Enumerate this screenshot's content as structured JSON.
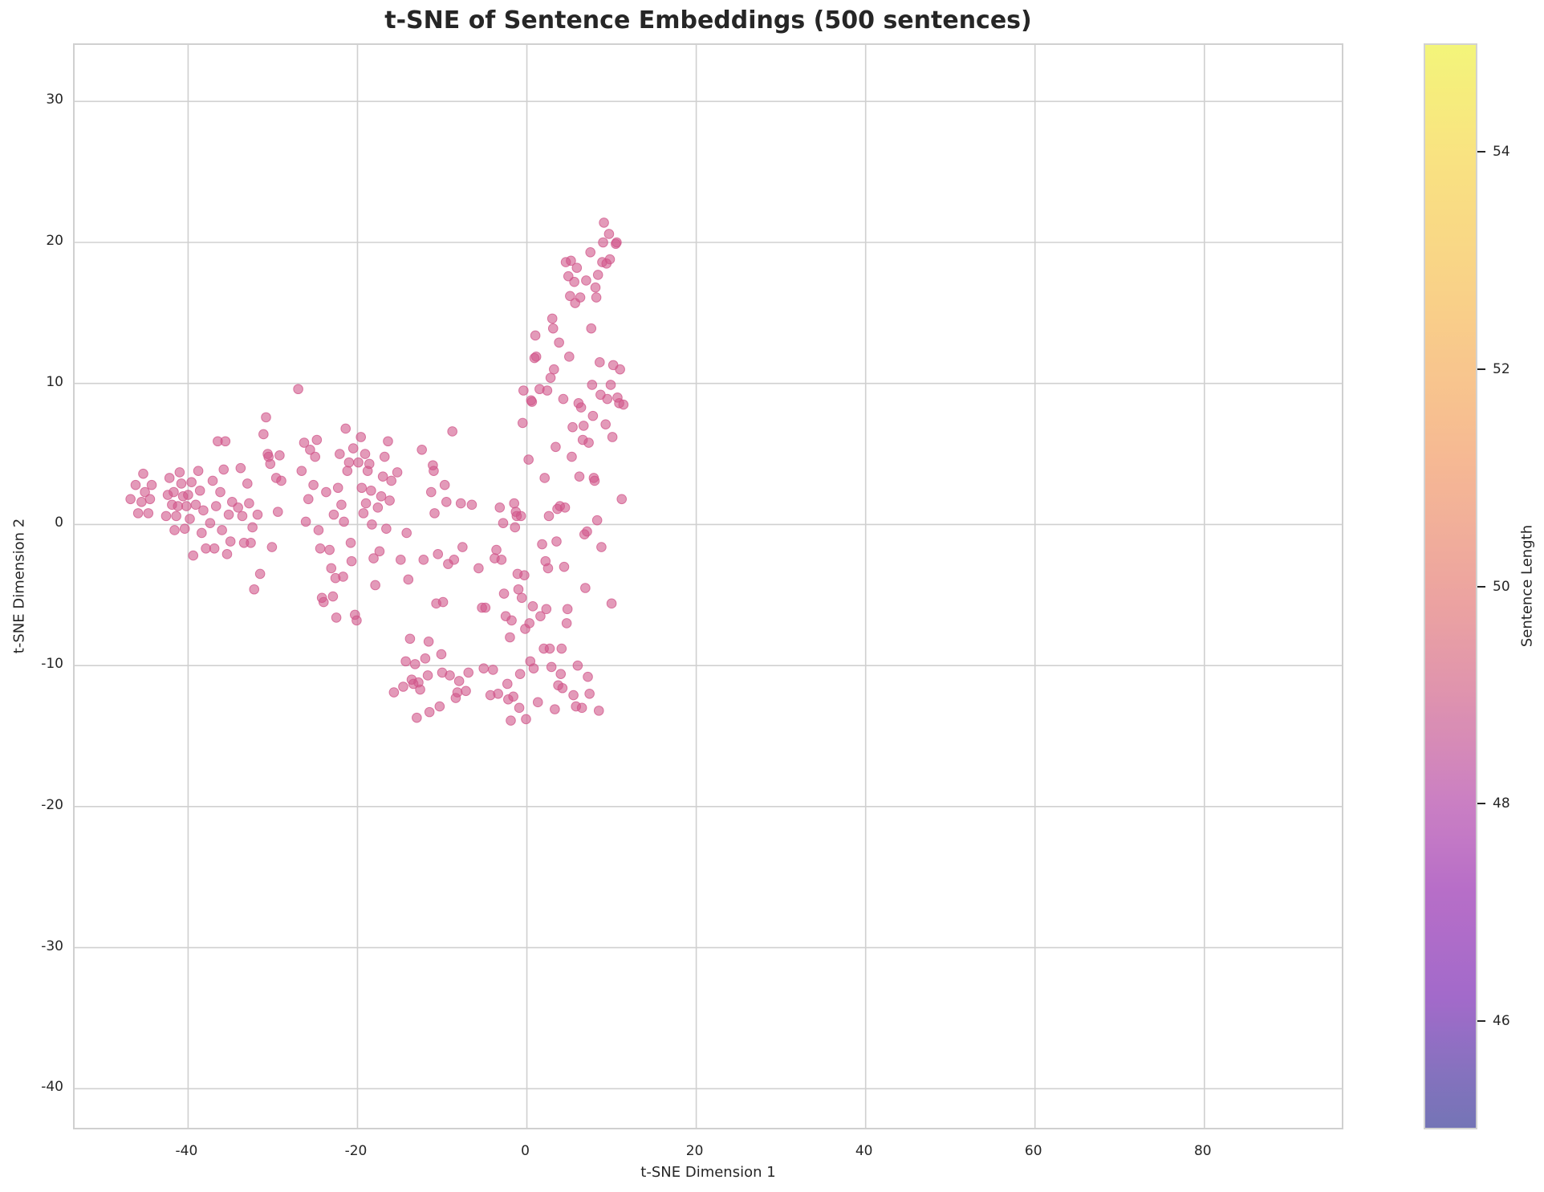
{
  "chart_data": {
    "type": "scatter",
    "title": "t-SNE of Sentence Embeddings (500 sentences)",
    "xlabel": "t-SNE Dimension 1",
    "ylabel": "t-SNE Dimension 2",
    "xlim": [
      -53.4,
      96.6
    ],
    "ylim": [
      -43,
      34
    ],
    "grid": true,
    "xticks": [
      -40,
      -20,
      0,
      20,
      40,
      60,
      80
    ],
    "yticks": [
      30,
      20,
      10,
      0,
      -10,
      -20,
      -30,
      -40
    ],
    "point_color": "#d0568a",
    "point_alpha": 0.6,
    "colorbar": {
      "label": "Sentence Length",
      "ticks": [
        54,
        52,
        50,
        48,
        46
      ],
      "range": [
        45.0,
        55.0
      ],
      "colormap": "plasma"
    },
    "n_points_stated": 500,
    "points": [
      [
        -46.8,
        1.8
      ],
      [
        -46.2,
        2.8
      ],
      [
        -45.9,
        0.8
      ],
      [
        -45.5,
        1.6
      ],
      [
        -45.3,
        3.6
      ],
      [
        -45.1,
        2.3
      ],
      [
        -44.7,
        0.8
      ],
      [
        -44.5,
        1.8
      ],
      [
        -44.3,
        2.8
      ],
      [
        -42.6,
        0.6
      ],
      [
        -42.4,
        2.1
      ],
      [
        -42.2,
        3.3
      ],
      [
        -41.9,
        1.4
      ],
      [
        -41.7,
        2.3
      ],
      [
        -41.6,
        -0.4
      ],
      [
        -41.4,
        0.6
      ],
      [
        -41.2,
        1.3
      ],
      [
        -41.0,
        3.7
      ],
      [
        -40.8,
        2.9
      ],
      [
        -40.6,
        2.0
      ],
      [
        -40.4,
        -0.3
      ],
      [
        -40.2,
        1.3
      ],
      [
        -40.0,
        2.1
      ],
      [
        -39.8,
        0.4
      ],
      [
        -39.6,
        3.0
      ],
      [
        -39.4,
        -2.2
      ],
      [
        -39.1,
        1.4
      ],
      [
        -38.8,
        3.8
      ],
      [
        -38.6,
        2.4
      ],
      [
        -38.4,
        -0.6
      ],
      [
        -38.2,
        1.0
      ],
      [
        -37.9,
        -1.7
      ],
      [
        -37.4,
        0.1
      ],
      [
        -37.1,
        3.1
      ],
      [
        -36.9,
        -1.7
      ],
      [
        -36.7,
        1.3
      ],
      [
        -36.5,
        5.9
      ],
      [
        -36.2,
        2.3
      ],
      [
        -36.0,
        -0.4
      ],
      [
        -35.8,
        3.9
      ],
      [
        -35.6,
        5.9
      ],
      [
        -35.4,
        -2.1
      ],
      [
        -35.2,
        0.7
      ],
      [
        -35.0,
        -1.2
      ],
      [
        -34.8,
        1.6
      ],
      [
        -34.1,
        1.2
      ],
      [
        -33.8,
        4.0
      ],
      [
        -33.6,
        0.6
      ],
      [
        -33.4,
        -1.3
      ],
      [
        -33.0,
        2.9
      ],
      [
        -32.8,
        1.5
      ],
      [
        -32.6,
        -1.3
      ],
      [
        -32.4,
        -0.2
      ],
      [
        -32.2,
        -4.6
      ],
      [
        -31.8,
        0.7
      ],
      [
        -31.5,
        -3.5
      ],
      [
        -31.1,
        6.4
      ],
      [
        -30.8,
        7.6
      ],
      [
        -30.6,
        5.0
      ],
      [
        -30.5,
        4.8
      ],
      [
        -30.3,
        4.3
      ],
      [
        -30.1,
        -1.6
      ],
      [
        -29.6,
        3.3
      ],
      [
        -29.4,
        0.9
      ],
      [
        -29.2,
        4.9
      ],
      [
        -29.0,
        3.1
      ],
      [
        -27.0,
        9.6
      ],
      [
        -26.6,
        3.8
      ],
      [
        -26.3,
        5.8
      ],
      [
        -26.1,
        0.2
      ],
      [
        -25.8,
        1.8
      ],
      [
        -25.6,
        5.3
      ],
      [
        -25.2,
        2.8
      ],
      [
        -25.0,
        4.8
      ],
      [
        -24.8,
        6.0
      ],
      [
        -24.6,
        -0.4
      ],
      [
        -24.4,
        -1.7
      ],
      [
        -24.2,
        -5.2
      ],
      [
        -24.0,
        -5.5
      ],
      [
        -23.7,
        2.3
      ],
      [
        -23.3,
        -1.8
      ],
      [
        -23.1,
        -3.1
      ],
      [
        -22.9,
        -5.1
      ],
      [
        -22.8,
        0.7
      ],
      [
        -22.6,
        -3.8
      ],
      [
        -22.5,
        -6.6
      ],
      [
        -22.3,
        2.6
      ],
      [
        -22.1,
        5.0
      ],
      [
        -21.9,
        1.4
      ],
      [
        -21.7,
        -3.7
      ],
      [
        -21.6,
        0.2
      ],
      [
        -21.4,
        6.8
      ],
      [
        -21.2,
        3.8
      ],
      [
        -21.0,
        4.4
      ],
      [
        -20.8,
        -1.3
      ],
      [
        -20.7,
        -2.6
      ],
      [
        -20.5,
        5.4
      ],
      [
        -20.3,
        -6.4
      ],
      [
        -20.1,
        -6.8
      ],
      [
        -19.9,
        4.4
      ],
      [
        -19.6,
        6.2
      ],
      [
        -19.5,
        2.6
      ],
      [
        -19.3,
        0.8
      ],
      [
        -19.1,
        5.0
      ],
      [
        -19.0,
        1.5
      ],
      [
        -18.8,
        3.8
      ],
      [
        -18.6,
        4.3
      ],
      [
        -18.4,
        2.4
      ],
      [
        -18.3,
        0.0
      ],
      [
        -18.1,
        -2.4
      ],
      [
        -17.9,
        -4.3
      ],
      [
        -17.6,
        1.2
      ],
      [
        -17.4,
        -1.9
      ],
      [
        -17.2,
        2.0
      ],
      [
        -17.0,
        3.4
      ],
      [
        -16.8,
        4.8
      ],
      [
        -16.6,
        -0.3
      ],
      [
        -16.4,
        5.9
      ],
      [
        -16.2,
        1.7
      ],
      [
        -16.0,
        3.1
      ],
      [
        -15.7,
        -11.9
      ],
      [
        -15.3,
        3.7
      ],
      [
        -14.9,
        -2.5
      ],
      [
        -14.6,
        -11.5
      ],
      [
        -14.3,
        -9.7
      ],
      [
        -14.2,
        -0.6
      ],
      [
        -14.0,
        -3.9
      ],
      [
        -13.8,
        -8.1
      ],
      [
        -13.6,
        -11.0
      ],
      [
        -13.4,
        -11.3
      ],
      [
        -13.2,
        -9.9
      ],
      [
        -13.0,
        -13.7
      ],
      [
        -12.8,
        -11.2
      ],
      [
        -12.6,
        -11.7
      ],
      [
        -12.4,
        5.3
      ],
      [
        -12.2,
        -2.5
      ],
      [
        -12.0,
        -9.5
      ],
      [
        -11.7,
        -10.7
      ],
      [
        -11.6,
        -8.3
      ],
      [
        -11.5,
        -13.3
      ],
      [
        -11.3,
        2.3
      ],
      [
        -11.1,
        4.2
      ],
      [
        -11.0,
        3.8
      ],
      [
        -10.9,
        0.8
      ],
      [
        -10.7,
        -5.6
      ],
      [
        -10.5,
        -2.1
      ],
      [
        -10.3,
        -12.9
      ],
      [
        -10.1,
        -9.2
      ],
      [
        -10.0,
        -10.5
      ],
      [
        -9.9,
        -5.5
      ],
      [
        -9.7,
        2.8
      ],
      [
        -9.5,
        1.6
      ],
      [
        -9.3,
        -2.8
      ],
      [
        -9.1,
        -10.7
      ],
      [
        -8.8,
        6.6
      ],
      [
        -8.6,
        -2.5
      ],
      [
        -8.4,
        -12.3
      ],
      [
        -8.2,
        -11.9
      ],
      [
        -8.0,
        -11.1
      ],
      [
        -7.8,
        1.5
      ],
      [
        -7.6,
        -1.6
      ],
      [
        -7.2,
        -11.8
      ],
      [
        -6.9,
        -10.5
      ],
      [
        -6.5,
        1.4
      ],
      [
        -5.7,
        -3.1
      ],
      [
        -5.3,
        -5.9
      ],
      [
        -5.1,
        -10.2
      ],
      [
        -4.9,
        -5.9
      ],
      [
        -4.3,
        -12.1
      ],
      [
        -4.0,
        -10.3
      ],
      [
        -3.8,
        -2.4
      ],
      [
        -3.6,
        -1.8
      ],
      [
        -3.4,
        -12.0
      ],
      [
        -3.2,
        1.2
      ],
      [
        -3.0,
        -2.5
      ],
      [
        -2.8,
        0.1
      ],
      [
        -2.7,
        -4.9
      ],
      [
        -2.5,
        -6.5
      ],
      [
        -2.3,
        -11.3
      ],
      [
        -2.2,
        -12.4
      ],
      [
        -2.0,
        -8.0
      ],
      [
        -1.9,
        -13.9
      ],
      [
        -1.8,
        -6.8
      ],
      [
        -1.6,
        -12.2
      ],
      [
        -1.5,
        1.5
      ],
      [
        -1.4,
        -0.2
      ],
      [
        -1.3,
        0.9
      ],
      [
        -1.2,
        0.6
      ],
      [
        -1.1,
        -3.5
      ],
      [
        -1.0,
        -4.6
      ],
      [
        -0.9,
        -13.0
      ],
      [
        -0.8,
        -10.6
      ],
      [
        -0.7,
        0.6
      ],
      [
        -0.6,
        -5.2
      ],
      [
        -0.5,
        7.2
      ],
      [
        -0.4,
        9.5
      ],
      [
        -0.3,
        -3.6
      ],
      [
        -0.2,
        -7.4
      ],
      [
        -0.1,
        -13.8
      ],
      [
        0.2,
        4.6
      ],
      [
        0.3,
        -7.0
      ],
      [
        0.4,
        -9.7
      ],
      [
        0.5,
        8.8
      ],
      [
        0.6,
        8.7
      ],
      [
        0.7,
        -5.8
      ],
      [
        0.8,
        -10.2
      ],
      [
        0.9,
        11.8
      ],
      [
        1.0,
        13.4
      ],
      [
        1.1,
        11.9
      ],
      [
        1.3,
        -12.6
      ],
      [
        1.5,
        9.6
      ],
      [
        1.6,
        -6.5
      ],
      [
        1.8,
        -1.4
      ],
      [
        2.0,
        -8.8
      ],
      [
        2.1,
        3.3
      ],
      [
        2.2,
        -2.6
      ],
      [
        2.3,
        -6.0
      ],
      [
        2.4,
        9.5
      ],
      [
        2.5,
        -3.1
      ],
      [
        2.6,
        0.6
      ],
      [
        2.7,
        -8.8
      ],
      [
        2.8,
        10.4
      ],
      [
        2.9,
        -10.1
      ],
      [
        3.0,
        14.6
      ],
      [
        3.1,
        13.9
      ],
      [
        3.2,
        11.0
      ],
      [
        3.3,
        -13.1
      ],
      [
        3.4,
        5.5
      ],
      [
        3.5,
        -1.2
      ],
      [
        3.6,
        1.1
      ],
      [
        3.7,
        -11.4
      ],
      [
        3.8,
        12.9
      ],
      [
        3.9,
        1.3
      ],
      [
        4.0,
        -10.6
      ],
      [
        4.1,
        -8.8
      ],
      [
        4.2,
        -11.6
      ],
      [
        4.3,
        8.9
      ],
      [
        4.4,
        -3.0
      ],
      [
        4.5,
        1.2
      ],
      [
        4.6,
        18.6
      ],
      [
        4.7,
        -7.0
      ],
      [
        4.8,
        -6.0
      ],
      [
        4.9,
        17.6
      ],
      [
        5.0,
        11.9
      ],
      [
        5.1,
        16.2
      ],
      [
        5.2,
        18.7
      ],
      [
        5.3,
        4.8
      ],
      [
        5.4,
        6.9
      ],
      [
        5.5,
        -12.1
      ],
      [
        5.6,
        17.2
      ],
      [
        5.7,
        15.7
      ],
      [
        5.8,
        -12.9
      ],
      [
        5.9,
        18.2
      ],
      [
        6.0,
        -10.0
      ],
      [
        6.1,
        8.6
      ],
      [
        6.2,
        3.4
      ],
      [
        6.3,
        16.1
      ],
      [
        6.4,
        8.3
      ],
      [
        6.5,
        -13.0
      ],
      [
        6.6,
        6.0
      ],
      [
        6.7,
        7.0
      ],
      [
        6.8,
        -0.7
      ],
      [
        6.9,
        -4.5
      ],
      [
        7.0,
        17.3
      ],
      [
        7.1,
        -0.5
      ],
      [
        7.2,
        -10.8
      ],
      [
        7.3,
        5.8
      ],
      [
        7.4,
        -12.0
      ],
      [
        7.5,
        19.3
      ],
      [
        7.6,
        13.9
      ],
      [
        7.7,
        9.9
      ],
      [
        7.8,
        7.7
      ],
      [
        7.9,
        3.3
      ],
      [
        8.0,
        3.1
      ],
      [
        8.1,
        16.8
      ],
      [
        8.2,
        16.1
      ],
      [
        8.3,
        0.3
      ],
      [
        8.4,
        17.7
      ],
      [
        8.5,
        -13.2
      ],
      [
        8.6,
        11.5
      ],
      [
        8.7,
        9.2
      ],
      [
        8.8,
        -1.6
      ],
      [
        8.9,
        18.6
      ],
      [
        9.0,
        20.0
      ],
      [
        9.1,
        21.4
      ],
      [
        9.3,
        7.1
      ],
      [
        9.4,
        18.5
      ],
      [
        9.5,
        8.9
      ],
      [
        9.7,
        20.6
      ],
      [
        9.8,
        18.8
      ],
      [
        9.9,
        9.9
      ],
      [
        10.0,
        -5.6
      ],
      [
        10.1,
        6.2
      ],
      [
        10.2,
        11.3
      ],
      [
        10.5,
        19.9
      ],
      [
        10.6,
        20.0
      ],
      [
        10.7,
        9.0
      ],
      [
        10.9,
        8.6
      ],
      [
        11.0,
        11.0
      ],
      [
        11.2,
        1.8
      ],
      [
        11.4,
        8.5
      ]
    ]
  }
}
